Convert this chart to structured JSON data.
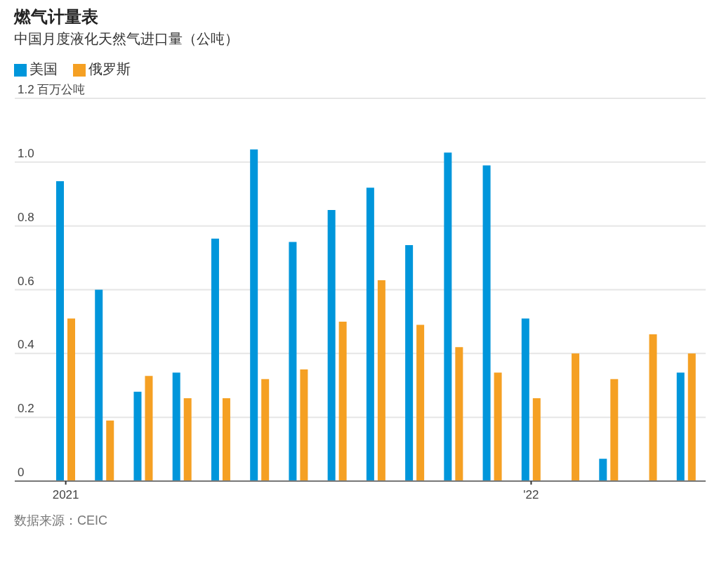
{
  "chart_data": {
    "type": "bar",
    "title": "燃气计量表",
    "subtitle": "中国月度液化天然气进口量（公吨）",
    "categories": [
      "2021",
      null,
      null,
      null,
      null,
      null,
      null,
      null,
      null,
      null,
      null,
      null,
      "'22",
      null,
      null,
      null,
      null
    ],
    "series": [
      {
        "name": "美国",
        "color": "#0096db",
        "values": [
          0.94,
          0.6,
          0.28,
          0.34,
          0.76,
          1.04,
          0.75,
          0.85,
          0.92,
          0.74,
          1.03,
          0.99,
          0.51,
          0,
          0.07,
          0,
          0.34
        ]
      },
      {
        "name": "俄罗斯",
        "color": "#f5a023",
        "values": [
          0.51,
          0.19,
          0.33,
          0.26,
          0.26,
          0.32,
          0.35,
          0.5,
          0.63,
          0.49,
          0.42,
          0.34,
          0.26,
          0.4,
          0.32,
          0.46,
          0.4
        ]
      }
    ],
    "ylim": [
      0,
      1.2
    ],
    "yticks": [
      0,
      0.2,
      0.4,
      0.6,
      0.8,
      {
        "value": 1,
        "label": "1.0"
      },
      {
        "value": 1.2,
        "label": "1.2 百万公吨"
      }
    ],
    "grid": "y",
    "legend": "top left",
    "annotations": [
      "数据来源：CEIC"
    ]
  }
}
